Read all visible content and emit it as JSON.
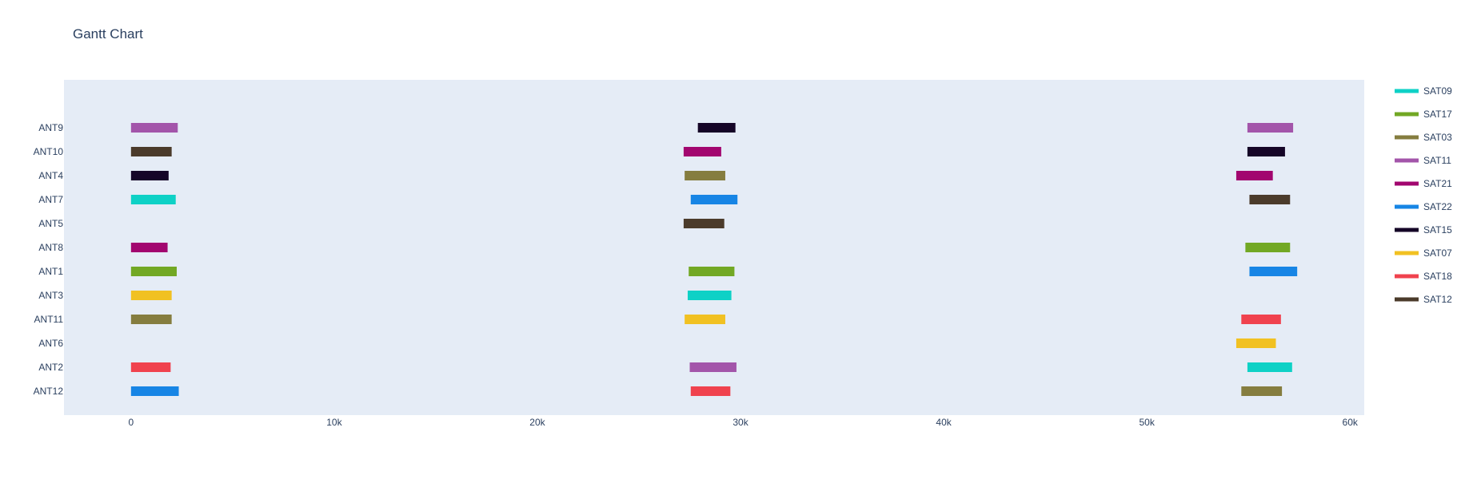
{
  "chart_data": {
    "type": "gantt",
    "title": "Gantt Chart",
    "xlabel": "",
    "ylabel": "",
    "xlim": [
      -3300,
      60700
    ],
    "grid": false,
    "legend_position": "right",
    "x_ticks": [
      0,
      10000,
      20000,
      30000,
      40000,
      50000,
      60000
    ],
    "x_tick_labels": [
      "0",
      "10k",
      "20k",
      "30k",
      "40k",
      "50k",
      "60k"
    ],
    "categories": [
      "ANT9",
      "ANT10",
      "ANT4",
      "ANT7",
      "ANT5",
      "ANT8",
      "ANT1",
      "ANT3",
      "ANT11",
      "ANT6",
      "ANT2",
      "ANT12"
    ],
    "series": [
      {
        "name": "SAT09",
        "color": "#0ed1c6",
        "tasks": [
          {
            "resource": "ANT7",
            "start": 0,
            "end": 2200
          },
          {
            "resource": "ANT3",
            "start": 27400,
            "end": 29550
          },
          {
            "resource": "ANT2",
            "start": 54950,
            "end": 57150
          }
        ]
      },
      {
        "name": "SAT17",
        "color": "#72a824",
        "tasks": [
          {
            "resource": "ANT1",
            "start": 0,
            "end": 2250
          },
          {
            "resource": "ANT1",
            "start": 27450,
            "end": 29700
          },
          {
            "resource": "ANT8",
            "start": 54850,
            "end": 57050
          }
        ]
      },
      {
        "name": "SAT03",
        "color": "#857d3f",
        "tasks": [
          {
            "resource": "ANT11",
            "start": 0,
            "end": 2000
          },
          {
            "resource": "ANT4",
            "start": 27250,
            "end": 29250
          },
          {
            "resource": "ANT12",
            "start": 54650,
            "end": 56650
          }
        ]
      },
      {
        "name": "SAT11",
        "color": "#a355aa",
        "tasks": [
          {
            "resource": "ANT9",
            "start": 0,
            "end": 2300
          },
          {
            "resource": "ANT2",
            "start": 27500,
            "end": 29800
          },
          {
            "resource": "ANT9",
            "start": 54950,
            "end": 57200
          }
        ]
      },
      {
        "name": "SAT21",
        "color": "#a2066f",
        "tasks": [
          {
            "resource": "ANT8",
            "start": 0,
            "end": 1800
          },
          {
            "resource": "ANT10",
            "start": 27200,
            "end": 29050
          },
          {
            "resource": "ANT4",
            "start": 54400,
            "end": 56200
          }
        ]
      },
      {
        "name": "SAT22",
        "color": "#1785e5",
        "tasks": [
          {
            "resource": "ANT12",
            "start": 0,
            "end": 2350
          },
          {
            "resource": "ANT7",
            "start": 27550,
            "end": 29850
          },
          {
            "resource": "ANT1",
            "start": 55050,
            "end": 57400
          }
        ]
      },
      {
        "name": "SAT15",
        "color": "#150527",
        "tasks": [
          {
            "resource": "ANT4",
            "start": 0,
            "end": 1850
          },
          {
            "resource": "ANT9",
            "start": 27900,
            "end": 29750
          },
          {
            "resource": "ANT10",
            "start": 54950,
            "end": 56800
          }
        ]
      },
      {
        "name": "SAT07",
        "color": "#f1c122",
        "tasks": [
          {
            "resource": "ANT3",
            "start": 0,
            "end": 2000
          },
          {
            "resource": "ANT11",
            "start": 27250,
            "end": 29250
          },
          {
            "resource": "ANT6",
            "start": 54400,
            "end": 56350
          }
        ]
      },
      {
        "name": "SAT18",
        "color": "#f0424e",
        "tasks": [
          {
            "resource": "ANT2",
            "start": 0,
            "end": 1950
          },
          {
            "resource": "ANT12",
            "start": 27550,
            "end": 29500
          },
          {
            "resource": "ANT11",
            "start": 54650,
            "end": 56600
          }
        ]
      },
      {
        "name": "SAT12",
        "color": "#4b3b2b",
        "tasks": [
          {
            "resource": "ANT10",
            "start": 0,
            "end": 2000
          },
          {
            "resource": "ANT5",
            "start": 27200,
            "end": 29200
          },
          {
            "resource": "ANT7",
            "start": 55050,
            "end": 57050
          }
        ]
      }
    ]
  }
}
